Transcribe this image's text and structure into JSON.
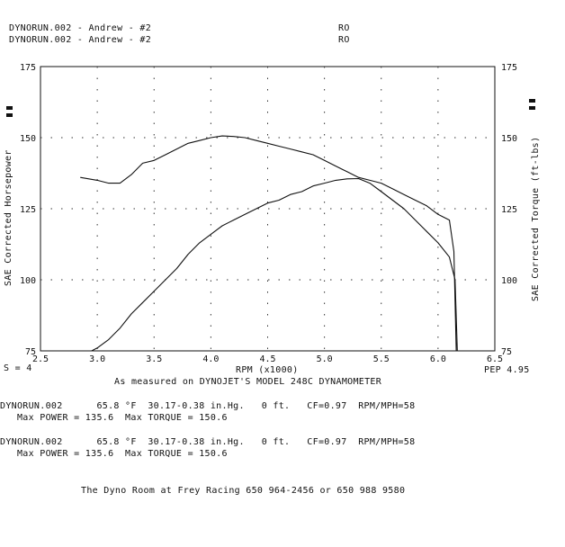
{
  "header": {
    "run_lines": [
      "DYNORUN.002 - Andrew - #2",
      "DYNORUN.002 - Andrew - #2"
    ],
    "codes": [
      "RO",
      "RO"
    ]
  },
  "left_ticks": [
    "175",
    "150",
    "125",
    "100",
    "75"
  ],
  "right_ticks": [
    "175",
    "150",
    "125",
    "100",
    "75"
  ],
  "x_ticks": [
    "2.5",
    "3.0",
    "3.5",
    "4.0",
    "4.5",
    "5.0",
    "5.5",
    "6.0",
    "6.5"
  ],
  "footer": {
    "smoothing": "S = 4",
    "pep": "PEP 4.95",
    "measured": "As measured on DYNOJET'S MODEL 248C DYNAMOMETER",
    "run1_line1": "DYNORUN.002      65.8 °F  30.17-0.38 in.Hg.   0 ft.   CF=0.97  RPM/MPH=58",
    "run1_line2": "   Max POWER = 135.6  Max TORQUE = 150.6",
    "run2_line1": "DYNORUN.002      65.8 °F  30.17-0.38 in.Hg.   0 ft.   CF=0.97  RPM/MPH=58",
    "run2_line2": "   Max POWER = 135.6  Max TORQUE = 150.6",
    "shop": "The Dyno Room at Frey Racing 650 964-2456 or 650 988 9580"
  },
  "chart_data": {
    "type": "line",
    "title": "",
    "xlabel": "RPM (x1000)",
    "ylabel_left": "SAE Corrected Horsepower",
    "ylabel_right": "SAE Corrected Torque (ft-lbs)",
    "xlim": [
      2.5,
      6.5
    ],
    "ylim_left": [
      75,
      175
    ],
    "ylim_right": [
      75,
      175
    ],
    "grid": true,
    "series": [
      {
        "axis": "left",
        "x": [
          2.95,
          3.0,
          3.1,
          3.2,
          3.3,
          3.4,
          3.5,
          3.6,
          3.7,
          3.8,
          3.9,
          4.0,
          4.1,
          4.2,
          4.3,
          4.4,
          4.5,
          4.6,
          4.7,
          4.8,
          4.9,
          5.0,
          5.1,
          5.2,
          5.3,
          5.4,
          5.5,
          5.6,
          5.7,
          5.8,
          5.9,
          6.0,
          6.1,
          6.15,
          6.17
        ],
        "values": [
          75,
          76,
          79,
          83,
          88,
          92,
          96,
          100,
          104,
          109,
          113,
          116,
          119,
          121,
          123,
          125,
          127,
          128,
          130,
          131,
          133,
          134,
          135,
          135.5,
          135.6,
          134,
          131,
          128,
          125,
          121,
          117,
          113,
          108,
          100,
          75
        ]
      },
      {
        "axis": "right",
        "x": [
          2.85,
          3.0,
          3.1,
          3.2,
          3.3,
          3.4,
          3.5,
          3.6,
          3.7,
          3.8,
          3.9,
          4.0,
          4.1,
          4.2,
          4.3,
          4.4,
          4.5,
          4.6,
          4.7,
          4.8,
          4.9,
          5.0,
          5.1,
          5.2,
          5.3,
          5.4,
          5.5,
          5.6,
          5.7,
          5.8,
          5.9,
          6.0,
          6.1,
          6.14,
          6.16
        ],
        "values": [
          136,
          135,
          134,
          134,
          137,
          141,
          142,
          144,
          146,
          148,
          149,
          150,
          150.6,
          150.4,
          150,
          149,
          148,
          147,
          146,
          145,
          144,
          142,
          140,
          138,
          136,
          135,
          134,
          132,
          130,
          128,
          126,
          123,
          121,
          110,
          75
        ]
      }
    ]
  }
}
